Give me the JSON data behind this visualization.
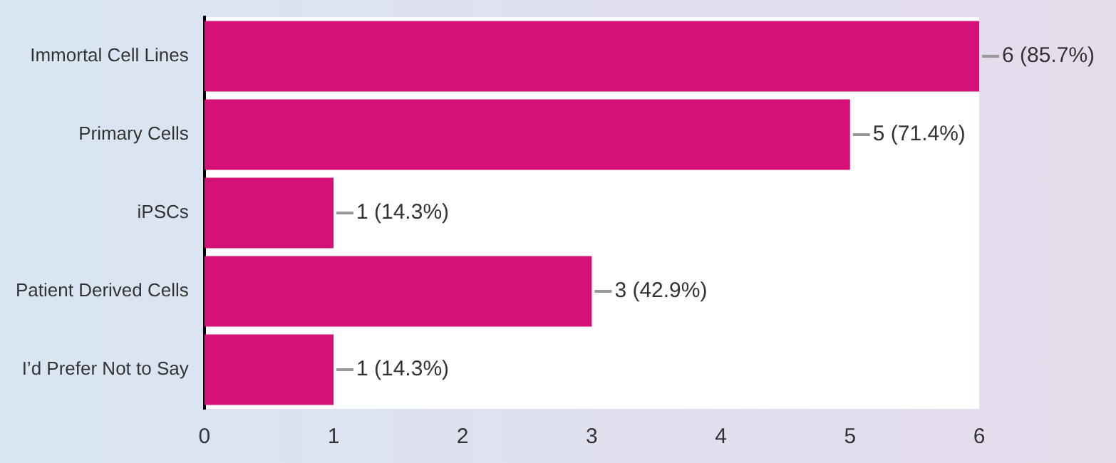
{
  "chart_data": {
    "type": "bar",
    "orientation": "horizontal",
    "categories": [
      "Immortal Cell Lines",
      "Primary Cells",
      "iPSCs",
      "Patient Derived Cells",
      "I’d Prefer Not to Say"
    ],
    "values": [
      6,
      5,
      1,
      3,
      1
    ],
    "color": "#d51077",
    "value_labels": [
      "6 (85.7%)",
      "5 (71.4%)",
      "1 (14.3%)",
      "3 (42.9%)",
      "1 (14.3%)"
    ],
    "xlim": [
      0,
      6
    ],
    "xticks": [
      0,
      1,
      2,
      3,
      4,
      5,
      6
    ],
    "grid": false,
    "legend": false
  }
}
